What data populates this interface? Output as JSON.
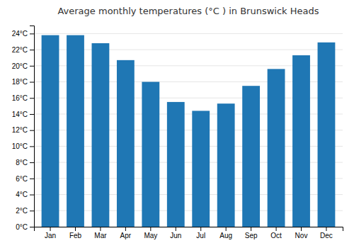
{
  "chart_data": {
    "type": "bar",
    "title": "Average monthly temperatures (°C ) in Brunswick Heads",
    "categories": [
      "Jan",
      "Feb",
      "Mar",
      "Apr",
      "May",
      "Jun",
      "Jul",
      "Aug",
      "Sep",
      "Oct",
      "Nov",
      "Dec"
    ],
    "values": [
      23.8,
      23.8,
      22.8,
      20.7,
      18.0,
      15.5,
      14.4,
      15.3,
      17.5,
      19.6,
      21.3,
      22.9
    ],
    "ylim": [
      0,
      25
    ],
    "yticks": [
      {
        "value": 0,
        "label": "0°C"
      },
      {
        "value": 2,
        "label": "2°C"
      },
      {
        "value": 4,
        "label": "4°C"
      },
      {
        "value": 6,
        "label": "6°C"
      },
      {
        "value": 8,
        "label": "8°C"
      },
      {
        "value": 10,
        "label": "10°C"
      },
      {
        "value": 12,
        "label": "12°C"
      },
      {
        "value": 14,
        "label": "14°C"
      },
      {
        "value": 16,
        "label": "16°C"
      },
      {
        "value": 18,
        "label": "18°C"
      },
      {
        "value": 20,
        "label": "20°C"
      },
      {
        "value": 22,
        "label": "22°C"
      },
      {
        "value": 24,
        "label": "24°C"
      }
    ],
    "grid": true
  }
}
